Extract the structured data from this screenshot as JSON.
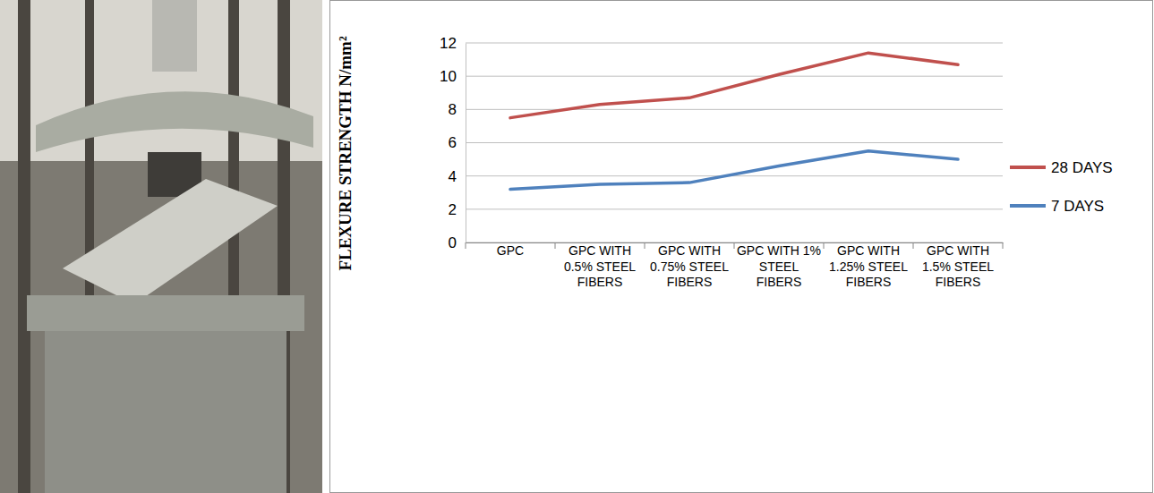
{
  "chart_data": {
    "type": "line",
    "y_label": "FLEXURE STRENGTH N/mm²",
    "categories": [
      "GPC",
      "GPC WITH 0.5% STEEL FIBERS",
      "GPC WITH 0.75% STEEL FIBERS",
      "GPC WITH 1% STEEL FIBERS",
      "GPC WITH 1.25% STEEL FIBERS",
      "GPC WITH 1.5% STEEL FIBERS"
    ],
    "series": [
      {
        "name": "28 DAYS",
        "color": "#c0504d",
        "values": [
          7.5,
          8.3,
          8.7,
          10.1,
          11.4,
          10.7
        ]
      },
      {
        "name": "7 DAYS",
        "color": "#4f81bd",
        "values": [
          3.2,
          3.5,
          3.6,
          4.6,
          5.5,
          5.0
        ]
      }
    ],
    "ylim": [
      0,
      12
    ],
    "yticks": [
      0,
      2,
      4,
      6,
      8,
      10,
      12
    ],
    "grid": true,
    "legend": "right"
  }
}
